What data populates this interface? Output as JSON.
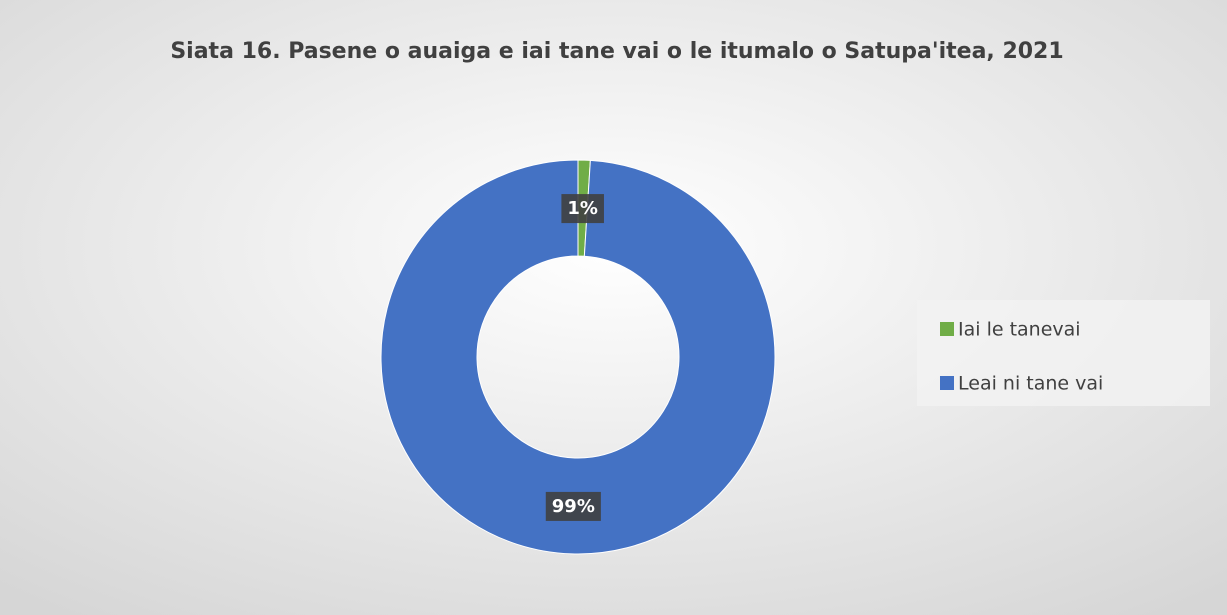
{
  "chart_data": {
    "type": "donut",
    "title": "Siata 16. Pasene o auaiga e iai tane vai o le itumalo o Satupa'itea, 2021",
    "categories": [
      "Iai le tanevai",
      "Leai ni tane vai"
    ],
    "values": [
      1,
      99
    ],
    "value_labels": [
      "1%",
      "99%"
    ],
    "colors": [
      "#70ad47",
      "#4472c4"
    ],
    "legend": "right"
  }
}
